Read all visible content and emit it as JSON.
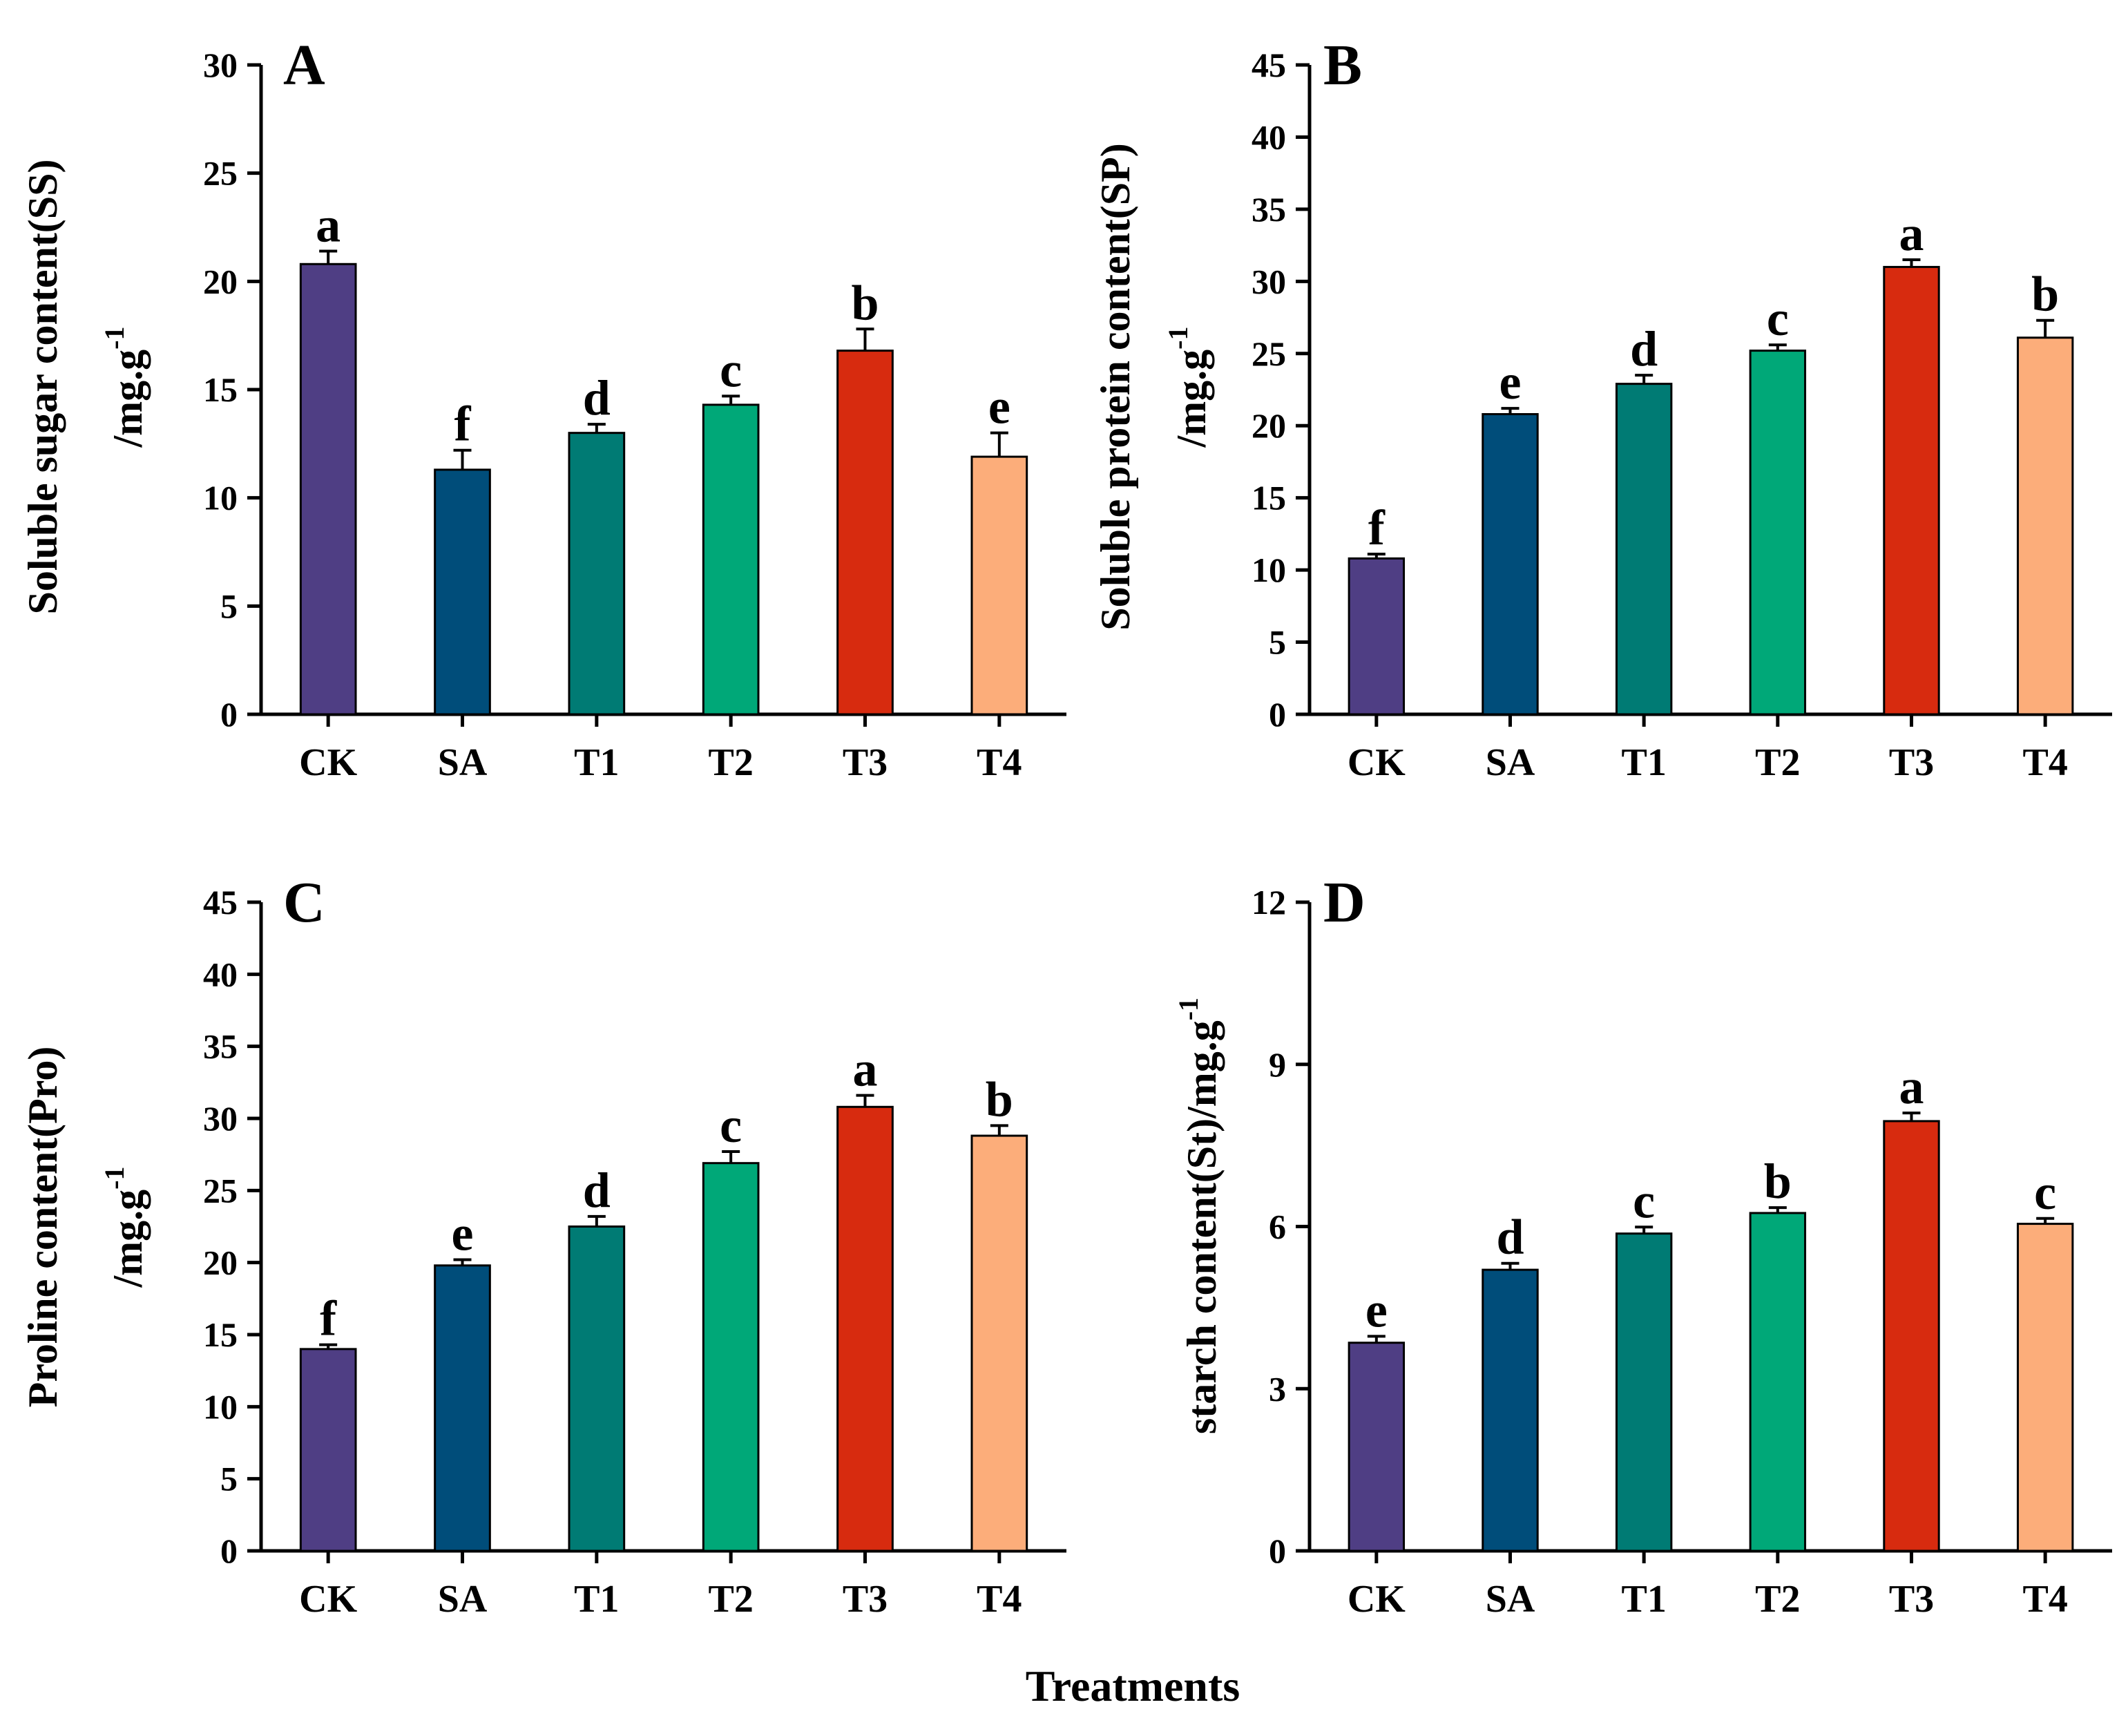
{
  "figure": {
    "xlabel": "Treatments"
  },
  "colors": [
    "#4f3e84",
    "#004d7a",
    "#007b74",
    "#00a878",
    "#d72b0f",
    "#fcad7a"
  ],
  "chart_data": [
    {
      "panel": "A",
      "type": "bar",
      "categories": [
        "CK",
        "SA",
        "T1",
        "T2",
        "T3",
        "T4"
      ],
      "values": [
        20.8,
        11.3,
        13.0,
        14.3,
        16.8,
        11.9
      ],
      "errors": [
        0.6,
        0.9,
        0.4,
        0.4,
        1.0,
        1.1
      ],
      "labels": [
        "a",
        "f",
        "d",
        "c",
        "b",
        "e"
      ],
      "ylabel_line1": "Soluble sugar content(SS)",
      "ylabel_unit": "/mg.g",
      "ylabel_sup": "-1",
      "ylim": [
        0,
        30
      ],
      "yticks": [
        0,
        5,
        10,
        15,
        20,
        25,
        30
      ]
    },
    {
      "panel": "B",
      "type": "bar",
      "categories": [
        "CK",
        "SA",
        "T1",
        "T2",
        "T3",
        "T4"
      ],
      "values": [
        10.8,
        20.8,
        22.9,
        25.2,
        31.0,
        26.1
      ],
      "errors": [
        0.3,
        0.4,
        0.6,
        0.4,
        0.5,
        1.2
      ],
      "labels": [
        "f",
        "e",
        "d",
        "c",
        "a",
        "b"
      ],
      "ylabel_line1": "Soluble protein content(SP)",
      "ylabel_unit": "/mg.g",
      "ylabel_sup": "-1",
      "ylim": [
        0,
        45
      ],
      "yticks": [
        0,
        5,
        10,
        15,
        20,
        25,
        30,
        35,
        40,
        45
      ]
    },
    {
      "panel": "C",
      "type": "bar",
      "categories": [
        "CK",
        "SA",
        "T1",
        "T2",
        "T3",
        "T4"
      ],
      "values": [
        14.0,
        19.8,
        22.5,
        26.9,
        30.8,
        28.8
      ],
      "errors": [
        0.3,
        0.4,
        0.7,
        0.8,
        0.8,
        0.7
      ],
      "labels": [
        "f",
        "e",
        "d",
        "c",
        "a",
        "b"
      ],
      "ylabel_line1": "Proline content(Pro)",
      "ylabel_unit": "/mg.g",
      "ylabel_sup": "-1",
      "ylim": [
        0,
        45
      ],
      "yticks": [
        0,
        5,
        10,
        15,
        20,
        25,
        30,
        35,
        40,
        45
      ]
    },
    {
      "panel": "D",
      "type": "bar",
      "categories": [
        "CK",
        "SA",
        "T1",
        "T2",
        "T3",
        "T4"
      ],
      "values": [
        3.85,
        5.2,
        5.87,
        6.25,
        7.95,
        6.05
      ],
      "errors": [
        0.12,
        0.12,
        0.12,
        0.1,
        0.15,
        0.1
      ],
      "labels": [
        "e",
        "d",
        "c",
        "b",
        "a",
        "c"
      ],
      "ylabel_line1": "starch content(St)/mg.g",
      "ylabel_unit": "",
      "ylabel_sup": "-1",
      "ylim": [
        0,
        12
      ],
      "yticks": [
        0,
        3,
        6,
        9,
        12
      ]
    }
  ]
}
